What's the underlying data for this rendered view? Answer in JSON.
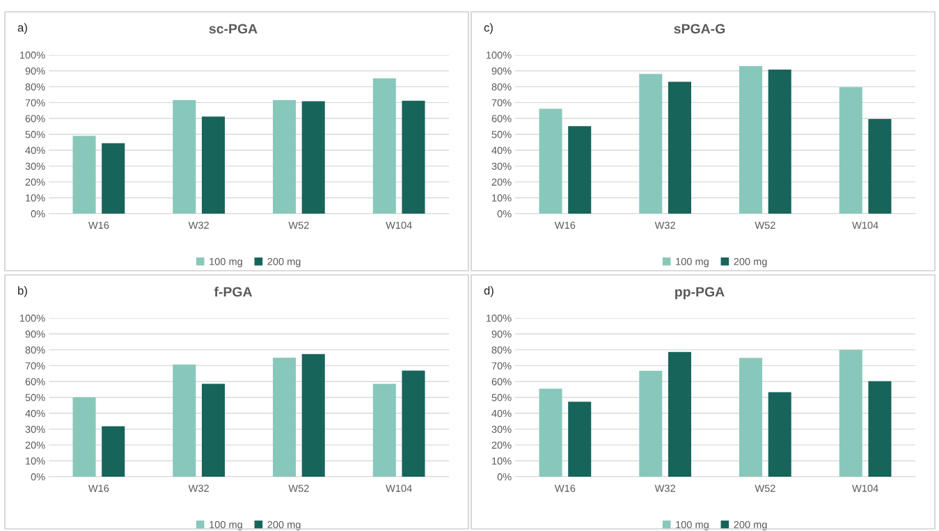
{
  "chart_data": [
    {
      "type": "bar",
      "title": "sc-PGA",
      "annotations": [
        "a)"
      ],
      "categories": [
        "W16",
        "W32",
        "W52",
        "W104"
      ],
      "series": [
        {
          "name": "100 mg",
          "color": "#88c8bb",
          "values": [
            49.0,
            71.6,
            71.6,
            85.3
          ]
        },
        {
          "name": "200 mg",
          "color": "#17645b",
          "values": [
            44.4,
            61.2,
            70.8,
            71.2
          ]
        }
      ],
      "ylim": [
        0,
        100
      ],
      "yticks": [
        {
          "value": 0,
          "label": "0%"
        },
        {
          "value": 10,
          "label": "10%"
        },
        {
          "value": 20,
          "label": "20%"
        },
        {
          "value": 30,
          "label": "30%"
        },
        {
          "value": 40,
          "label": "40%"
        },
        {
          "value": 50,
          "label": "50%"
        },
        {
          "value": 60,
          "label": "60%"
        },
        {
          "value": 70,
          "label": "70%"
        },
        {
          "value": 80,
          "label": "80%"
        },
        {
          "value": 90,
          "label": "90%"
        },
        {
          "value": 100,
          "label": "100%"
        }
      ],
      "grid": "y",
      "legend": "bottom"
    },
    {
      "type": "bar",
      "title": "sPGA-G",
      "annotations": [
        "c)"
      ],
      "categories": [
        "W16",
        "W32",
        "W52",
        "W104"
      ],
      "series": [
        {
          "name": "100 mg",
          "color": "#88c8bb",
          "values": [
            66.1,
            88.1,
            93.0,
            79.7
          ]
        },
        {
          "name": "200 mg",
          "color": "#17645b",
          "values": [
            55.2,
            83.1,
            90.8,
            59.7
          ]
        }
      ],
      "ylim": [
        0,
        100
      ],
      "yticks": [
        {
          "value": 0,
          "label": "0%"
        },
        {
          "value": 10,
          "label": "10%"
        },
        {
          "value": 20,
          "label": "20%"
        },
        {
          "value": 30,
          "label": "30%"
        },
        {
          "value": 40,
          "label": "40%"
        },
        {
          "value": 50,
          "label": "50%"
        },
        {
          "value": 60,
          "label": "60%"
        },
        {
          "value": 70,
          "label": "70%"
        },
        {
          "value": 80,
          "label": "80%"
        },
        {
          "value": 90,
          "label": "90%"
        },
        {
          "value": 100,
          "label": "100%"
        }
      ],
      "grid": "y",
      "legend": "bottom"
    },
    {
      "type": "bar",
      "title": "f-PGA",
      "annotations": [
        "b)"
      ],
      "categories": [
        "W16",
        "W32",
        "W52",
        "W104"
      ],
      "series": [
        {
          "name": "100 mg",
          "color": "#88c8bb",
          "values": [
            50.0,
            70.7,
            75.0,
            58.5
          ]
        },
        {
          "name": "200 mg",
          "color": "#17645b",
          "values": [
            31.8,
            58.5,
            77.3,
            66.9
          ]
        }
      ],
      "ylim": [
        0,
        100
      ],
      "yticks": [
        {
          "value": 0,
          "label": "0%"
        },
        {
          "value": 10,
          "label": "10%"
        },
        {
          "value": 20,
          "label": "20%"
        },
        {
          "value": 30,
          "label": "30%"
        },
        {
          "value": 40,
          "label": "40%"
        },
        {
          "value": 50,
          "label": "50%"
        },
        {
          "value": 60,
          "label": "60%"
        },
        {
          "value": 70,
          "label": "70%"
        },
        {
          "value": 80,
          "label": "80%"
        },
        {
          "value": 90,
          "label": "90%"
        },
        {
          "value": 100,
          "label": "100%"
        }
      ],
      "grid": "y",
      "legend": "bottom"
    },
    {
      "type": "bar",
      "title": "pp-PGA",
      "annotations": [
        "d)"
      ],
      "categories": [
        "W16",
        "W32",
        "W52",
        "W104"
      ],
      "series": [
        {
          "name": "100 mg",
          "color": "#88c8bb",
          "values": [
            55.5,
            66.8,
            74.9,
            79.9
          ]
        },
        {
          "name": "200 mg",
          "color": "#17645b",
          "values": [
            47.3,
            78.6,
            53.3,
            60.2
          ]
        }
      ],
      "ylim": [
        0,
        100
      ],
      "yticks": [
        {
          "value": 0,
          "label": "0%"
        },
        {
          "value": 10,
          "label": "10%"
        },
        {
          "value": 20,
          "label": "20%"
        },
        {
          "value": 30,
          "label": "30%"
        },
        {
          "value": 40,
          "label": "40%"
        },
        {
          "value": 50,
          "label": "50%"
        },
        {
          "value": 60,
          "label": "60%"
        },
        {
          "value": 70,
          "label": "70%"
        },
        {
          "value": 80,
          "label": "80%"
        },
        {
          "value": 90,
          "label": "90%"
        },
        {
          "value": 100,
          "label": "100%"
        }
      ],
      "grid": "y",
      "legend": "bottom"
    }
  ]
}
